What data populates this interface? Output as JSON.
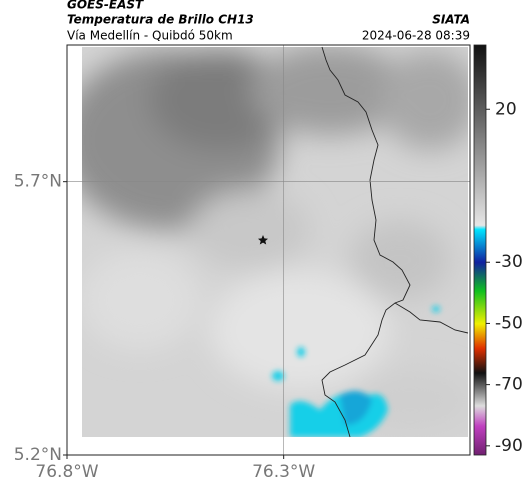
{
  "header": {
    "satellite": "GOES-EAST",
    "product": "Temperatura de Brillo CH13",
    "region": "Vía Medellín - Quibdó 50km",
    "source": "SIATA",
    "datetime": "2024-06-28 08:39"
  },
  "map": {
    "latlim": [
      5.2,
      5.95
    ],
    "lonlim": [
      76.8,
      75.87
    ],
    "latticks": [
      {
        "value": 5.7,
        "label": "5.7°N"
      },
      {
        "value": 5.2,
        "label": "5.2°N"
      }
    ],
    "lonticks": [
      {
        "value": 76.8,
        "label": "76.8°W"
      },
      {
        "value": 76.3,
        "label": "76.3°W"
      }
    ],
    "grid": true
  },
  "colorbar": {
    "lim": [
      41,
      -93
    ],
    "ticks": [
      20,
      -30,
      -50,
      -70,
      -90
    ]
  }
}
